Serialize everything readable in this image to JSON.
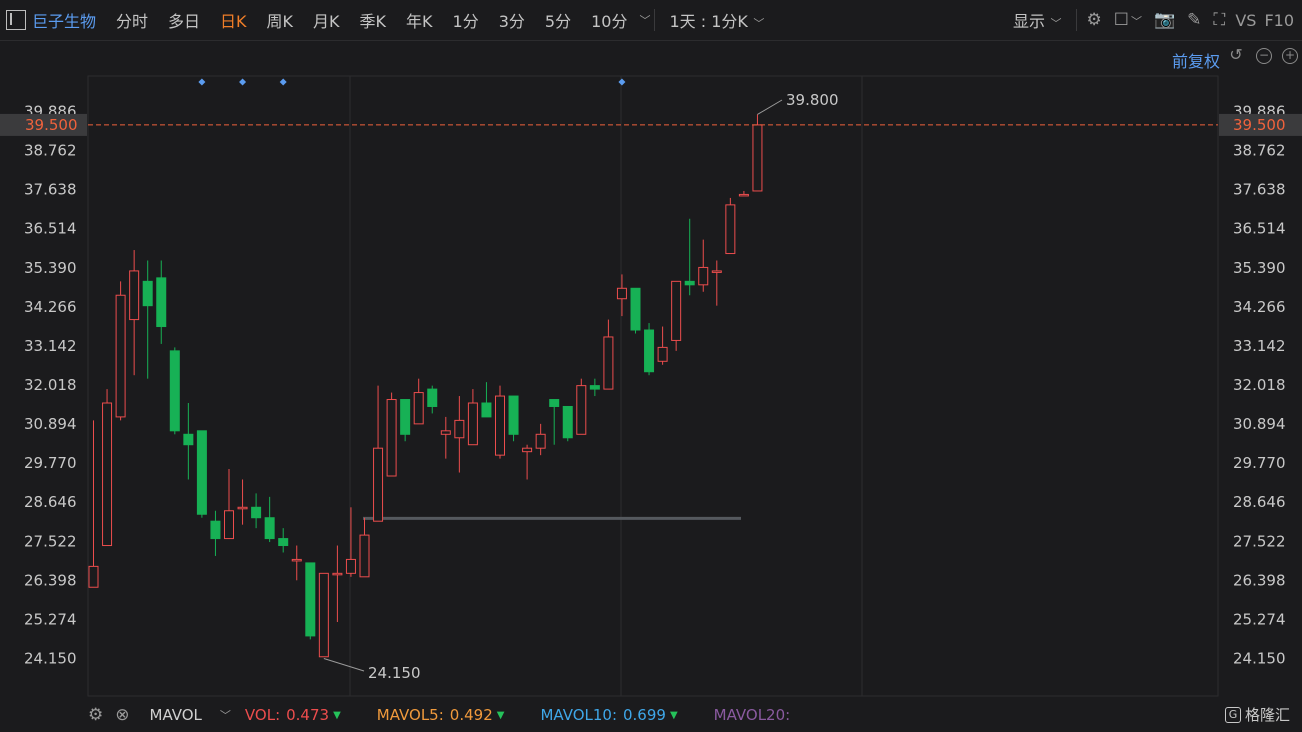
{
  "toolbar": {
    "stock_name": "巨子生物",
    "periods": [
      "分时",
      "多日",
      "日K",
      "周K",
      "月K",
      "季K",
      "年K",
      "1分",
      "3分",
      "5分",
      "10分"
    ],
    "active_period": "日K",
    "interval_selector": "1天 : 1分K",
    "display_label": "显示",
    "vs_label": "VS",
    "f10_label": "F10"
  },
  "adjust_label": "前复权",
  "colors": {
    "up": "#ec4d4d",
    "down": "#17b155",
    "grid": "#2c2c2e",
    "axis_text": "#c8c8c8",
    "current_price": "#f0623c",
    "accent": "#5b9cf0",
    "active": "#f07e28"
  },
  "bottom": {
    "indicator": "MAVOL",
    "vol_label": "VOL:",
    "vol_value": "0.473",
    "mavol5_label": "MAVOL5:",
    "mavol5_value": "0.492",
    "mavol10_label": "MAVOL10:",
    "mavol10_value": "0.699",
    "mavol20_label": "MAVOL20:"
  },
  "brand": "格隆汇",
  "chart_data": {
    "type": "candlestick",
    "y_ticks": [
      "39.886",
      "38.762",
      "37.638",
      "36.514",
      "35.390",
      "34.266",
      "33.142",
      "32.018",
      "30.894",
      "29.770",
      "28.646",
      "27.522",
      "26.398",
      "25.274",
      "24.150"
    ],
    "ylim": [
      23.5,
      41.0
    ],
    "current_price": "39.500",
    "max_label": "39.800",
    "min_label": "24.150",
    "event_markers": [
      8,
      11,
      14,
      39
    ],
    "support_level": 28.18,
    "candles": [
      {
        "o": 26.2,
        "h": 31.0,
        "l": 26.2,
        "c": 26.8
      },
      {
        "o": 27.4,
        "h": 31.9,
        "l": 27.4,
        "c": 31.5
      },
      {
        "o": 31.1,
        "h": 35.0,
        "l": 31.0,
        "c": 34.6
      },
      {
        "o": 33.9,
        "h": 35.9,
        "l": 32.3,
        "c": 35.3
      },
      {
        "o": 35.0,
        "h": 35.6,
        "l": 32.2,
        "c": 34.3
      },
      {
        "o": 35.1,
        "h": 35.6,
        "l": 33.2,
        "c": 33.7
      },
      {
        "o": 33.0,
        "h": 33.1,
        "l": 30.6,
        "c": 30.7
      },
      {
        "o": 30.6,
        "h": 31.5,
        "l": 29.3,
        "c": 30.3
      },
      {
        "o": 30.7,
        "h": 30.7,
        "l": 28.2,
        "c": 28.3
      },
      {
        "o": 28.1,
        "h": 28.4,
        "l": 27.1,
        "c": 27.6
      },
      {
        "o": 27.6,
        "h": 29.6,
        "l": 27.6,
        "c": 28.4
      },
      {
        "o": 28.5,
        "h": 29.3,
        "l": 28.0,
        "c": 28.5
      },
      {
        "o": 28.5,
        "h": 28.9,
        "l": 27.9,
        "c": 28.2
      },
      {
        "o": 28.2,
        "h": 28.8,
        "l": 27.5,
        "c": 27.6
      },
      {
        "o": 27.6,
        "h": 27.9,
        "l": 27.2,
        "c": 27.4
      },
      {
        "o": 27.0,
        "h": 27.4,
        "l": 26.4,
        "c": 27.0
      },
      {
        "o": 26.9,
        "h": 26.9,
        "l": 24.7,
        "c": 24.8
      },
      {
        "o": 24.2,
        "h": 26.6,
        "l": 24.2,
        "c": 26.6
      },
      {
        "o": 26.6,
        "h": 27.4,
        "l": 25.2,
        "c": 26.6
      },
      {
        "o": 26.6,
        "h": 28.5,
        "l": 26.5,
        "c": 27.0
      },
      {
        "o": 26.5,
        "h": 28.2,
        "l": 26.5,
        "c": 27.7
      },
      {
        "o": 28.1,
        "h": 32.0,
        "l": 28.1,
        "c": 30.2
      },
      {
        "o": 29.4,
        "h": 31.8,
        "l": 29.4,
        "c": 31.6
      },
      {
        "o": 31.6,
        "h": 31.6,
        "l": 30.4,
        "c": 30.6
      },
      {
        "o": 30.9,
        "h": 32.2,
        "l": 30.9,
        "c": 31.8
      },
      {
        "o": 31.9,
        "h": 32.0,
        "l": 31.2,
        "c": 31.4
      },
      {
        "o": 30.6,
        "h": 31.1,
        "l": 29.9,
        "c": 30.7
      },
      {
        "o": 30.5,
        "h": 31.7,
        "l": 29.5,
        "c": 31.0
      },
      {
        "o": 30.3,
        "h": 31.9,
        "l": 30.3,
        "c": 31.5
      },
      {
        "o": 31.5,
        "h": 32.1,
        "l": 31.1,
        "c": 31.1
      },
      {
        "o": 30.0,
        "h": 32.0,
        "l": 29.9,
        "c": 31.7
      },
      {
        "o": 31.7,
        "h": 31.7,
        "l": 30.4,
        "c": 30.6
      },
      {
        "o": 30.1,
        "h": 30.3,
        "l": 29.3,
        "c": 30.2
      },
      {
        "o": 30.2,
        "h": 30.9,
        "l": 30.0,
        "c": 30.6
      },
      {
        "o": 31.6,
        "h": 31.6,
        "l": 30.3,
        "c": 31.4
      },
      {
        "o": 31.4,
        "h": 31.4,
        "l": 30.4,
        "c": 30.5
      },
      {
        "o": 30.6,
        "h": 32.2,
        "l": 30.6,
        "c": 32.0
      },
      {
        "o": 32.0,
        "h": 32.2,
        "l": 31.7,
        "c": 31.9
      },
      {
        "o": 31.9,
        "h": 33.9,
        "l": 31.9,
        "c": 33.4
      },
      {
        "o": 34.5,
        "h": 35.2,
        "l": 34.0,
        "c": 34.8
      },
      {
        "o": 34.8,
        "h": 34.8,
        "l": 33.5,
        "c": 33.6
      },
      {
        "o": 33.6,
        "h": 33.8,
        "l": 32.3,
        "c": 32.4
      },
      {
        "o": 32.7,
        "h": 33.7,
        "l": 32.6,
        "c": 33.1
      },
      {
        "o": 33.3,
        "h": 35.0,
        "l": 33.0,
        "c": 35.0
      },
      {
        "o": 35.0,
        "h": 36.8,
        "l": 34.6,
        "c": 34.9
      },
      {
        "o": 34.9,
        "h": 36.2,
        "l": 34.7,
        "c": 35.4
      },
      {
        "o": 35.3,
        "h": 35.6,
        "l": 34.3,
        "c": 35.3
      },
      {
        "o": 35.8,
        "h": 37.4,
        "l": 35.8,
        "c": 37.2
      },
      {
        "o": 37.5,
        "h": 37.6,
        "l": 37.5,
        "c": 37.5
      },
      {
        "o": 37.6,
        "h": 39.8,
        "l": 37.6,
        "c": 39.5
      }
    ]
  }
}
